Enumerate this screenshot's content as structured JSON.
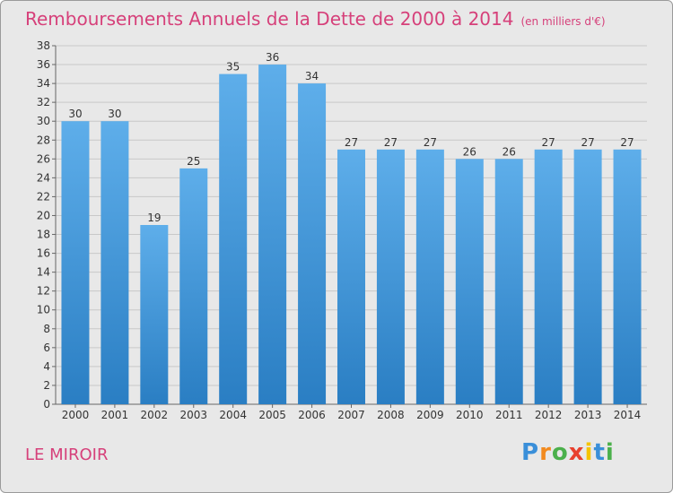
{
  "title": "Remboursements Annuels de la Dette de 2000 à 2014",
  "unit": "(en milliers d'€)",
  "commune": "LE MIROIR",
  "logo": "Proxiti",
  "colors": {
    "title": "#d6407a",
    "bar_light": "#5eaeea",
    "bar_dark": "#2a7ec3",
    "background": "#e8e8e8",
    "grid": "#c8c8c8"
  },
  "chart_data": {
    "type": "bar",
    "title": "Remboursements Annuels de la Dette de 2000 à 2014",
    "xlabel": "",
    "ylabel": "",
    "categories": [
      "2000",
      "2001",
      "2002",
      "2003",
      "2004",
      "2005",
      "2006",
      "2007",
      "2008",
      "2009",
      "2010",
      "2011",
      "2012",
      "2013",
      "2014"
    ],
    "values": [
      30,
      30,
      19,
      25,
      35,
      36,
      34,
      27,
      27,
      27,
      26,
      26,
      27,
      27,
      27
    ],
    "ylim": [
      0,
      38
    ],
    "ytick_step": 2,
    "grid": true,
    "data_labels": true
  }
}
